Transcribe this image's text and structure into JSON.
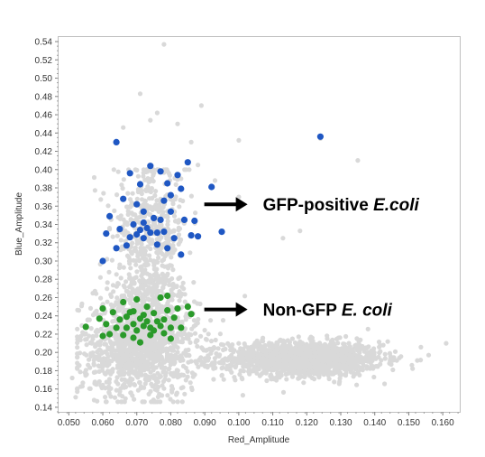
{
  "chart_data": {
    "type": "scatter",
    "title": "",
    "xlabel": "Red_Amplitude",
    "ylabel": "Blue_Amplitude",
    "xlim": [
      0.047,
      0.165
    ],
    "ylim": [
      0.135,
      0.545
    ],
    "x_ticks": [
      "0.050",
      "0.060",
      "0.070",
      "0.080",
      "0.090",
      "0.100",
      "0.110",
      "0.120",
      "0.130",
      "0.140",
      "0.150",
      "0.160"
    ],
    "y_ticks": [
      "0.14",
      "0.16",
      "0.18",
      "0.20",
      "0.22",
      "0.24",
      "0.26",
      "0.28",
      "0.30",
      "0.32",
      "0.34",
      "0.36",
      "0.38",
      "0.40",
      "0.42",
      "0.44",
      "0.46",
      "0.48",
      "0.50",
      "0.52",
      "0.54"
    ],
    "grid": false,
    "colors": {
      "background": "#d9d9d9",
      "highlight_positive": "#1f57c3",
      "highlight_negative": "#2a9a2a"
    },
    "series": [
      {
        "role": "background",
        "clusters": [
          {
            "cx": 0.119,
            "cy": 0.193,
            "sx": 0.0115,
            "sy": 0.0095,
            "n": 1500
          },
          {
            "cx": 0.071,
            "cy": 0.205,
            "sx": 0.0085,
            "sy": 0.026,
            "n": 1200
          },
          {
            "cx": 0.074,
            "cy": 0.335,
            "sx": 0.0055,
            "sy": 0.034,
            "n": 430
          },
          {
            "cx": 0.073,
            "cy": 0.262,
            "sx": 0.006,
            "sy": 0.017,
            "n": 220
          }
        ],
        "outliers": [
          [
            0.078,
            0.537
          ],
          [
            0.071,
            0.483
          ],
          [
            0.076,
            0.462
          ],
          [
            0.089,
            0.47
          ],
          [
            0.066,
            0.446
          ],
          [
            0.082,
            0.45
          ],
          [
            0.074,
            0.454
          ],
          [
            0.1,
            0.432
          ],
          [
            0.124,
            0.434
          ],
          [
            0.135,
            0.41
          ],
          [
            0.1,
            0.37
          ],
          [
            0.093,
            0.388
          ],
          [
            0.088,
            0.405
          ],
          [
            0.113,
            0.325
          ],
          [
            0.118,
            0.333
          ],
          [
            0.161,
            0.21
          ],
          [
            0.052,
            0.151
          ],
          [
            0.054,
            0.163
          ],
          [
            0.051,
            0.172
          ],
          [
            0.083,
            0.39
          ],
          [
            0.086,
            0.43
          ]
        ]
      },
      {
        "name": "GFP-positive E.coli",
        "color": "#1f57c3",
        "points": [
          [
            0.064,
            0.43
          ],
          [
            0.068,
            0.396
          ],
          [
            0.074,
            0.404
          ],
          [
            0.071,
            0.384
          ],
          [
            0.077,
            0.398
          ],
          [
            0.085,
            0.408
          ],
          [
            0.082,
            0.394
          ],
          [
            0.079,
            0.385
          ],
          [
            0.078,
            0.366
          ],
          [
            0.08,
            0.372
          ],
          [
            0.083,
            0.379
          ],
          [
            0.092,
            0.381
          ],
          [
            0.124,
            0.436
          ],
          [
            0.07,
            0.362
          ],
          [
            0.066,
            0.368
          ],
          [
            0.062,
            0.349
          ],
          [
            0.072,
            0.354
          ],
          [
            0.075,
            0.347
          ],
          [
            0.08,
            0.354
          ],
          [
            0.084,
            0.345
          ],
          [
            0.087,
            0.344
          ],
          [
            0.069,
            0.34
          ],
          [
            0.071,
            0.334
          ],
          [
            0.073,
            0.336
          ],
          [
            0.074,
            0.331
          ],
          [
            0.076,
            0.331
          ],
          [
            0.078,
            0.332
          ],
          [
            0.072,
            0.342
          ],
          [
            0.081,
            0.325
          ],
          [
            0.086,
            0.328
          ],
          [
            0.088,
            0.327
          ],
          [
            0.061,
            0.33
          ],
          [
            0.064,
            0.314
          ],
          [
            0.067,
            0.317
          ],
          [
            0.07,
            0.329
          ],
          [
            0.068,
            0.326
          ],
          [
            0.072,
            0.325
          ],
          [
            0.076,
            0.318
          ],
          [
            0.079,
            0.314
          ],
          [
            0.083,
            0.307
          ],
          [
            0.06,
            0.3
          ],
          [
            0.095,
            0.332
          ],
          [
            0.077,
            0.345
          ],
          [
            0.065,
            0.335
          ]
        ]
      },
      {
        "name": "Non-GFP E. coli",
        "color": "#2a9a2a",
        "points": [
          [
            0.066,
            0.255
          ],
          [
            0.07,
            0.258
          ],
          [
            0.077,
            0.26
          ],
          [
            0.079,
            0.262
          ],
          [
            0.073,
            0.25
          ],
          [
            0.069,
            0.245
          ],
          [
            0.072,
            0.241
          ],
          [
            0.075,
            0.243
          ],
          [
            0.079,
            0.246
          ],
          [
            0.082,
            0.248
          ],
          [
            0.085,
            0.25
          ],
          [
            0.067,
            0.239
          ],
          [
            0.065,
            0.236
          ],
          [
            0.071,
            0.237
          ],
          [
            0.073,
            0.234
          ],
          [
            0.076,
            0.234
          ],
          [
            0.078,
            0.236
          ],
          [
            0.081,
            0.238
          ],
          [
            0.069,
            0.231
          ],
          [
            0.072,
            0.229
          ],
          [
            0.074,
            0.227
          ],
          [
            0.077,
            0.229
          ],
          [
            0.08,
            0.227
          ],
          [
            0.083,
            0.227
          ],
          [
            0.064,
            0.227
          ],
          [
            0.067,
            0.227
          ],
          [
            0.07,
            0.224
          ],
          [
            0.075,
            0.224
          ],
          [
            0.078,
            0.221
          ],
          [
            0.062,
            0.22
          ],
          [
            0.06,
            0.218
          ],
          [
            0.055,
            0.228
          ],
          [
            0.066,
            0.219
          ],
          [
            0.069,
            0.216
          ],
          [
            0.074,
            0.219
          ],
          [
            0.071,
            0.211
          ],
          [
            0.08,
            0.215
          ],
          [
            0.06,
            0.248
          ],
          [
            0.063,
            0.244
          ],
          [
            0.068,
            0.244
          ],
          [
            0.086,
            0.242
          ],
          [
            0.059,
            0.237
          ],
          [
            0.061,
            0.231
          ]
        ]
      }
    ],
    "annotations": [
      {
        "text_before": "GFP-positive ",
        "text_italic": "E.coli",
        "points_to": [
          0.088,
          0.362
        ]
      },
      {
        "text_before": "Non-GFP ",
        "text_italic": "E. coli",
        "points_to": [
          0.088,
          0.247
        ]
      }
    ]
  }
}
